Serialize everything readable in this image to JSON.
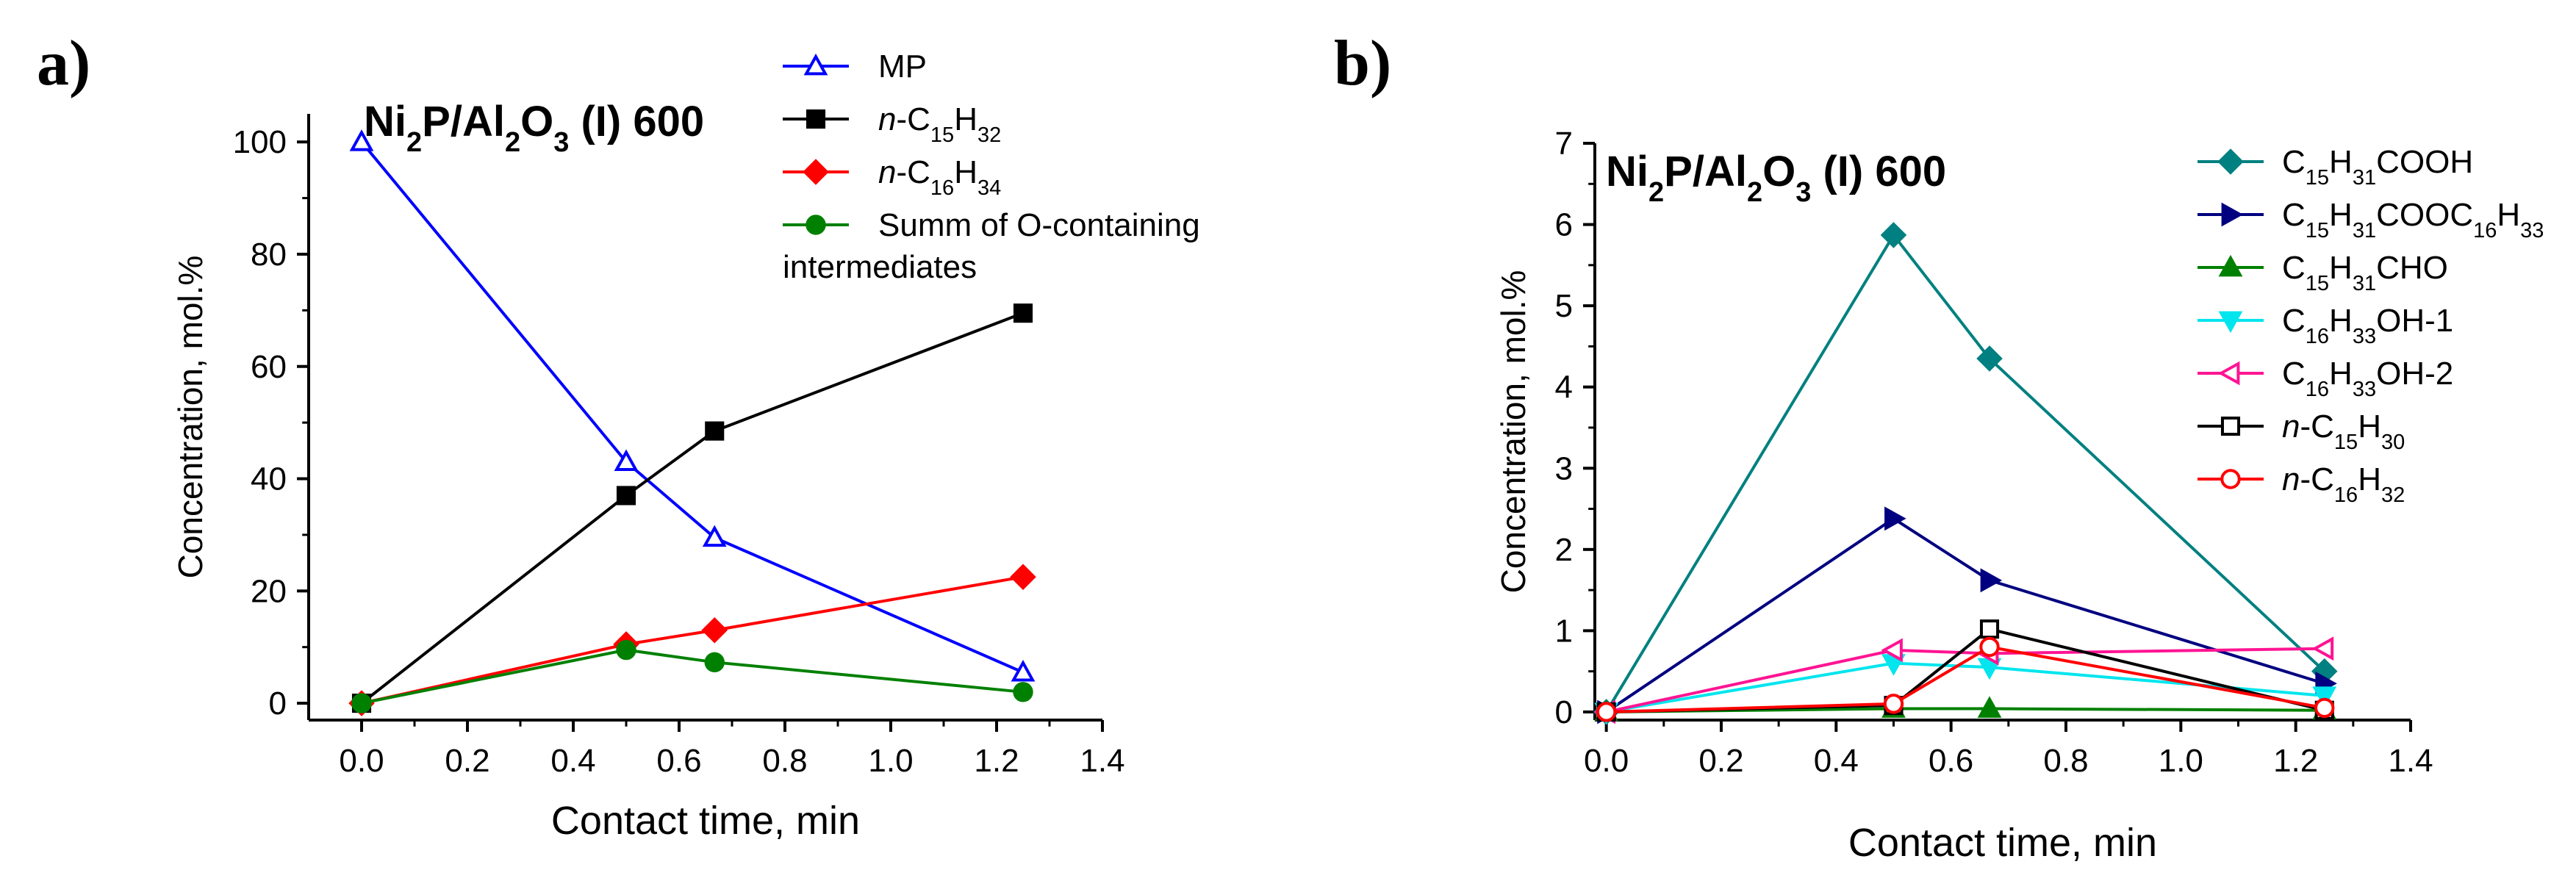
{
  "panels": [
    {
      "letter": "a)",
      "title": [
        {
          "t": "Ni"
        },
        {
          "t": "2",
          "s": 1
        },
        {
          "t": "P/Al"
        },
        {
          "t": "2",
          "s": 1
        },
        {
          "t": "O"
        },
        {
          "t": "3",
          "s": 1
        },
        {
          "t": " (I) 600"
        }
      ]
    },
    {
      "letter": "b)",
      "title": [
        {
          "t": "Ni"
        },
        {
          "t": "2",
          "s": 1
        },
        {
          "t": "P/Al"
        },
        {
          "t": "2",
          "s": 1
        },
        {
          "t": "O"
        },
        {
          "t": "3",
          "s": 1
        },
        {
          "t": " (I) 600"
        }
      ]
    }
  ],
  "chart_data": [
    {
      "type": "line",
      "xlabel": "Contact time, min",
      "ylabel": "Concentration, mol.%",
      "xlim": [
        -0.1,
        1.4
      ],
      "ylim": [
        -3,
        105
      ],
      "xticks": [
        "0.0",
        "0.2",
        "0.4",
        "0.6",
        "0.8",
        "1.0",
        "1.2",
        "1.4"
      ],
      "yticks": [
        "0",
        "20",
        "40",
        "60",
        "80",
        "100"
      ],
      "legend_position": "top-right",
      "series": [
        {
          "name": [
            {
              "t": "MP"
            }
          ],
          "color": "#0000ff",
          "marker": "triangle-up",
          "fill": "none",
          "x": [
            0,
            0.5,
            0.667,
            1.25
          ],
          "y": [
            100,
            43,
            29.5,
            5.5
          ]
        },
        {
          "name": [
            {
              "t": "n",
              "i": 1
            },
            {
              "t": "-C"
            },
            {
              "t": "15",
              "s": 1
            },
            {
              "t": "H"
            },
            {
              "t": "32",
              "s": 1
            }
          ],
          "color": "#000000",
          "marker": "square",
          "fill": "solid",
          "x": [
            0,
            0.5,
            0.667,
            1.25
          ],
          "y": [
            0,
            37,
            48.5,
            69.5
          ]
        },
        {
          "name": [
            {
              "t": "n",
              "i": 1
            },
            {
              "t": "-C"
            },
            {
              "t": "16",
              "s": 1
            },
            {
              "t": "H"
            },
            {
              "t": "34",
              "s": 1
            }
          ],
          "color": "#ff0000",
          "marker": "diamond",
          "fill": "solid",
          "x": [
            0,
            0.5,
            0.667,
            1.25
          ],
          "y": [
            0,
            10.5,
            13,
            22.5
          ]
        },
        {
          "name": [
            {
              "t": "Summ of O-containing"
            }
          ],
          "name2": "intermediates",
          "color": "#008000",
          "marker": "circle",
          "fill": "solid",
          "x": [
            0,
            0.5,
            0.667,
            1.25
          ],
          "y": [
            0,
            9.5,
            7.3,
            2
          ]
        }
      ]
    },
    {
      "type": "line",
      "xlabel": "Contact time, min",
      "ylabel": "Concentration, mol.%",
      "xlim": [
        -0.02,
        1.4
      ],
      "ylim": [
        -0.1,
        7
      ],
      "xticks": [
        "0.0",
        "0.2",
        "0.4",
        "0.6",
        "0.8",
        "1.0",
        "1.2",
        "1.4"
      ],
      "yticks": [
        "0",
        "1",
        "2",
        "3",
        "4",
        "5",
        "6",
        "7"
      ],
      "legend_position": "top-right",
      "series": [
        {
          "name": [
            {
              "t": "C"
            },
            {
              "t": "15",
              "s": 1
            },
            {
              "t": "H"
            },
            {
              "t": "31",
              "s": 1
            },
            {
              "t": "COOH"
            }
          ],
          "color": "#008080",
          "marker": "diamond",
          "fill": "solid",
          "x": [
            0,
            0.5,
            0.667,
            1.25
          ],
          "y": [
            0,
            5.87,
            4.35,
            0.5
          ]
        },
        {
          "name": [
            {
              "t": "C"
            },
            {
              "t": "15",
              "s": 1
            },
            {
              "t": "H"
            },
            {
              "t": "31",
              "s": 1
            },
            {
              "t": "COOC"
            },
            {
              "t": "16",
              "s": 1
            },
            {
              "t": "H"
            },
            {
              "t": "33",
              "s": 1
            }
          ],
          "color": "#000080",
          "marker": "triangle-right",
          "fill": "solid",
          "x": [
            0,
            0.5,
            0.667,
            1.25
          ],
          "y": [
            0,
            2.38,
            1.62,
            0.35
          ]
        },
        {
          "name": [
            {
              "t": "C"
            },
            {
              "t": "15",
              "s": 1
            },
            {
              "t": "H"
            },
            {
              "t": "31",
              "s": 1
            },
            {
              "t": "CHO"
            }
          ],
          "color": "#008000",
          "marker": "triangle-up",
          "fill": "solid",
          "x": [
            0,
            0.5,
            0.667,
            1.25
          ],
          "y": [
            0,
            0.04,
            0.04,
            0.02
          ]
        },
        {
          "name": [
            {
              "t": "C"
            },
            {
              "t": "16",
              "s": 1
            },
            {
              "t": "H"
            },
            {
              "t": "33",
              "s": 1
            },
            {
              "t": "OH-1"
            }
          ],
          "color": "#00e5ee",
          "marker": "triangle-down",
          "fill": "solid",
          "x": [
            0,
            0.5,
            0.667,
            1.25
          ],
          "y": [
            0,
            0.6,
            0.55,
            0.2
          ]
        },
        {
          "name": [
            {
              "t": "C"
            },
            {
              "t": "16",
              "s": 1
            },
            {
              "t": "H"
            },
            {
              "t": "33",
              "s": 1
            },
            {
              "t": "OH-2"
            }
          ],
          "color": "#ff1493",
          "marker": "triangle-left",
          "fill": "none",
          "x": [
            0,
            0.5,
            0.667,
            1.25
          ],
          "y": [
            0,
            0.76,
            0.72,
            0.78
          ]
        },
        {
          "name": [
            {
              "t": "n",
              "i": 1
            },
            {
              "t": "-C"
            },
            {
              "t": "15",
              "s": 1
            },
            {
              "t": "H"
            },
            {
              "t": "30",
              "s": 1
            }
          ],
          "color": "#000000",
          "marker": "square",
          "fill": "none",
          "x": [
            0,
            0.5,
            0.667,
            1.25
          ],
          "y": [
            0,
            0.08,
            1.02,
            0.02
          ]
        },
        {
          "name": [
            {
              "t": "n",
              "i": 1
            },
            {
              "t": "-C"
            },
            {
              "t": "16",
              "s": 1
            },
            {
              "t": "H"
            },
            {
              "t": "32",
              "s": 1
            }
          ],
          "color": "#ff0000",
          "marker": "circle",
          "fill": "none",
          "x": [
            0,
            0.5,
            0.667,
            1.25
          ],
          "y": [
            0,
            0.1,
            0.8,
            0.05
          ]
        }
      ]
    }
  ]
}
